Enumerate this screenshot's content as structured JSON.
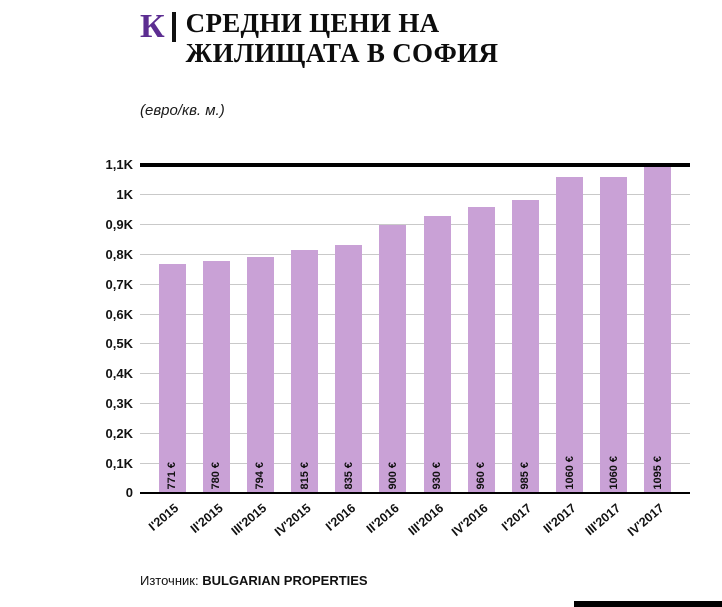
{
  "header": {
    "logo": "К",
    "title_line1": "СРЕДНИ ЦЕНИ НА",
    "title_line2": "ЖИЛИЩАТА В СОФИЯ",
    "subtitle": "(евро/кв. м.)"
  },
  "footer": {
    "source_label": "Източник:",
    "source_value": "BULGARIAN PROPERTIES"
  },
  "colors": {
    "bar": "#c9a1d6",
    "logo": "#5c2d91",
    "grid": "#c9c9c9",
    "axis": "#000000"
  },
  "chart_data": {
    "type": "bar",
    "title": "СРЕДНИ ЦЕНИ НА ЖИЛИЩАТА В СОФИЯ",
    "unit": "евро/кв. м.",
    "categories": [
      "I'2015",
      "II'2015",
      "III'2015",
      "IV'2015",
      "I'2016",
      "II'2016",
      "III'2016",
      "IV'2016",
      "I'2017",
      "II'2017",
      "III'2017",
      "IV'2017"
    ],
    "values": [
      771,
      780,
      794,
      815,
      835,
      900,
      930,
      960,
      985,
      1060,
      1060,
      1095
    ],
    "value_labels": [
      "771 €",
      "780 €",
      "794 €",
      "815 €",
      "835 €",
      "900 €",
      "930 €",
      "960 €",
      "985 €",
      "1060 €",
      "1060 €",
      "1095 €"
    ],
    "ylim": [
      0,
      1100
    ],
    "ytick_step": 100,
    "ytick_labels": [
      "0",
      "0,1K",
      "0,2K",
      "0,3K",
      "0,4K",
      "0,5K",
      "0,6K",
      "0,7K",
      "0,8K",
      "0,9K",
      "1K",
      "1,1K"
    ],
    "grid": true,
    "legend": false,
    "source": "BULGARIAN PROPERTIES"
  }
}
